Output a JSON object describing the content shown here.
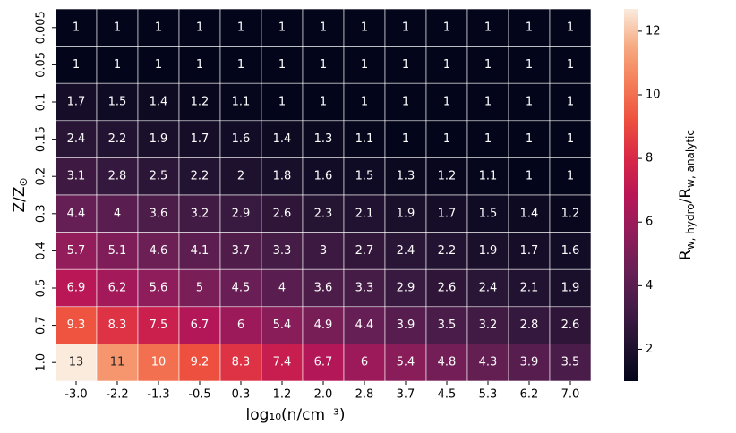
{
  "chart_data": {
    "type": "heatmap",
    "x_categories": [
      "-3.0",
      "-2.2",
      "-1.3",
      "-0.5",
      "0.3",
      "1.2",
      "2.0",
      "2.8",
      "3.7",
      "4.5",
      "5.3",
      "6.2",
      "7.0"
    ],
    "y_categories": [
      "0.005",
      "0.05",
      "0.1",
      "0.15",
      "0.2",
      "0.3",
      "0.4",
      "0.5",
      "0.7",
      "1.0"
    ],
    "values": [
      [
        1,
        1,
        1,
        1,
        1,
        1,
        1,
        1,
        1,
        1,
        1,
        1,
        1
      ],
      [
        1,
        1,
        1,
        1,
        1,
        1,
        1,
        1,
        1,
        1,
        1,
        1,
        1
      ],
      [
        1.7,
        1.5,
        1.4,
        1.2,
        1.1,
        1,
        1,
        1,
        1,
        1,
        1,
        1,
        1
      ],
      [
        2.4,
        2.2,
        1.9,
        1.7,
        1.6,
        1.4,
        1.3,
        1.1,
        1,
        1,
        1,
        1,
        1
      ],
      [
        3.1,
        2.8,
        2.5,
        2.2,
        2,
        1.8,
        1.6,
        1.5,
        1.3,
        1.2,
        1.1,
        1,
        1
      ],
      [
        4.4,
        4,
        3.6,
        3.2,
        2.9,
        2.6,
        2.3,
        2.1,
        1.9,
        1.7,
        1.5,
        1.4,
        1.2
      ],
      [
        5.7,
        5.1,
        4.6,
        4.1,
        3.7,
        3.3,
        3,
        2.7,
        2.4,
        2.2,
        1.9,
        1.7,
        1.6
      ],
      [
        6.9,
        6.2,
        5.6,
        5,
        4.5,
        4,
        3.6,
        3.3,
        2.9,
        2.6,
        2.4,
        2.1,
        1.9
      ],
      [
        9.3,
        8.3,
        7.5,
        6.7,
        6,
        5.4,
        4.9,
        4.4,
        3.9,
        3.5,
        3.2,
        2.8,
        2.6
      ],
      [
        13,
        11,
        10,
        9.2,
        8.3,
        7.4,
        6.7,
        6,
        5.4,
        4.8,
        4.3,
        3.9,
        3.5
      ]
    ],
    "xlabel": "log₁₀(n/cm⁻³)",
    "ylabel": {
      "main": "Z/Z",
      "sub": "⊙"
    },
    "colorbar_label": {
      "r1": "R",
      "s1": "w, hydro",
      "r2": "/R",
      "s2": "w, analytic"
    },
    "colormap": "rocket",
    "zlim": [
      1,
      12.7
    ],
    "zticks": [
      2,
      4,
      6,
      8,
      10,
      12
    ]
  }
}
